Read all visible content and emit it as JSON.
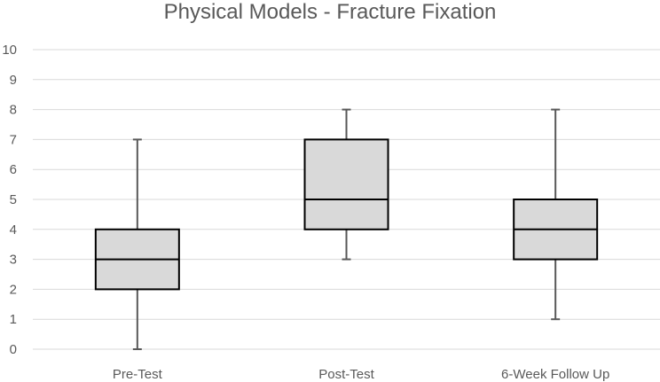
{
  "chart_data": {
    "type": "box",
    "title": "Physical Models - Fracture Fixation",
    "xlabel": "",
    "ylabel": "",
    "ylim": [
      0,
      10
    ],
    "yticks": [
      "0",
      "1",
      "2",
      "3",
      "4",
      "5",
      "6",
      "7",
      "8",
      "9",
      "10"
    ],
    "grid": true,
    "categories": [
      "Pre-Test",
      "Post-Test",
      "6-Week Follow Up"
    ],
    "boxes": [
      {
        "min": 0,
        "q1": 2,
        "median": 3,
        "q3": 4,
        "max": 7
      },
      {
        "min": 3,
        "q1": 4,
        "median": 5,
        "q3": 7,
        "max": 8
      },
      {
        "min": 1,
        "q1": 3,
        "median": 4,
        "q3": 5,
        "max": 8
      }
    ],
    "colors": {
      "box_fill": "#d9d9d9",
      "box_stroke": "#000000",
      "whisker": "#595959",
      "grid": "#d9d9d9",
      "text": "#595959"
    }
  }
}
